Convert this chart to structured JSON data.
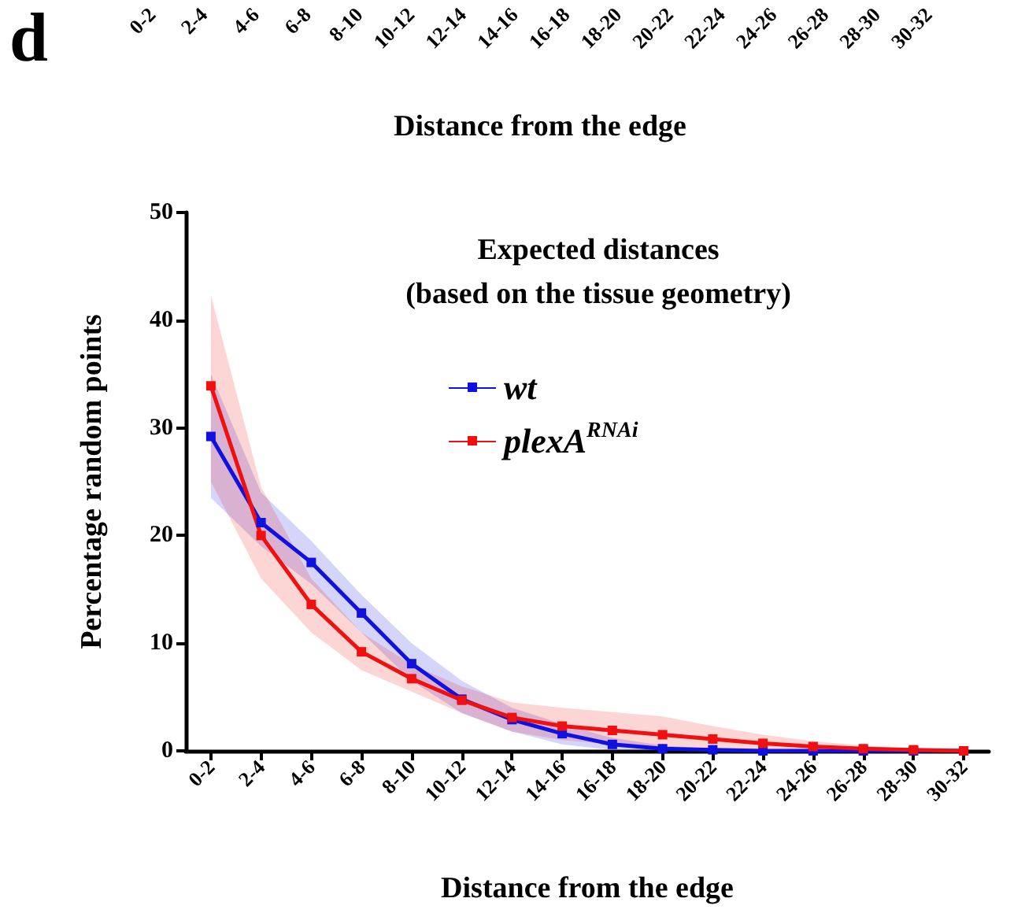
{
  "chart_data": [
    {
      "type": "other",
      "categories": [
        "0-2",
        "2-4",
        "4-6",
        "6-8",
        "8-10",
        "10-12",
        "12-14",
        "14-16",
        "16-18",
        "18-20",
        "20-22",
        "22-24",
        "24-26",
        "26-28",
        "28-30",
        "30-32"
      ],
      "xlabel": "Distance from the edge",
      "annotations": [
        "d"
      ]
    },
    {
      "type": "line",
      "title": "Expected distances\n(based on the tissue geometry)",
      "xlabel": "Distance from the edge",
      "ylabel": "Percentage random points",
      "categories": [
        "0-2",
        "2-4",
        "4-6",
        "6-8",
        "8-10",
        "10-12",
        "12-14",
        "14-16",
        "16-18",
        "18-20",
        "20-22",
        "22-24",
        "24-26",
        "26-28",
        "28-30",
        "30-32"
      ],
      "ylim": [
        0,
        50
      ],
      "yticks": [
        0,
        10,
        20,
        30,
        40,
        50
      ],
      "grid": false,
      "legend": "top",
      "marker": "square",
      "line_style": "solid",
      "series": [
        {
          "name": "wt",
          "color": "#1010e0",
          "values": [
            29.2,
            21.2,
            17.5,
            12.8,
            8.1,
            4.8,
            2.9,
            1.6,
            0.6,
            0.2,
            0.1,
            0,
            0,
            0,
            0,
            0
          ],
          "lower": [
            23.5,
            19,
            15.5,
            11,
            6.5,
            3.5,
            1.8,
            0.6,
            0.1,
            0,
            0,
            0,
            0,
            0,
            0,
            0
          ],
          "upper": [
            35,
            24,
            19.5,
            14.5,
            10,
            6.5,
            4,
            2.5,
            1.2,
            0.5,
            0.2,
            0.1,
            0,
            0,
            0,
            0
          ]
        },
        {
          "name": "plexA$^{RNAi}$",
          "color": "#f01010",
          "values": [
            33.9,
            20,
            13.6,
            9.2,
            6.7,
            4.7,
            3.1,
            2.3,
            1.9,
            1.5,
            1.1,
            0.7,
            0.4,
            0.2,
            0.1,
            0
          ],
          "lower": [
            25,
            16,
            11,
            7.5,
            5.5,
            3.5,
            1.8,
            1,
            0.6,
            0.4,
            0.2,
            0.1,
            0,
            0,
            0,
            0
          ],
          "upper": [
            42.3,
            24.5,
            16,
            11,
            8,
            6,
            4.5,
            4,
            3.6,
            3.2,
            2.3,
            1.5,
            0.9,
            0.5,
            0.2,
            0
          ]
        }
      ]
    }
  ]
}
